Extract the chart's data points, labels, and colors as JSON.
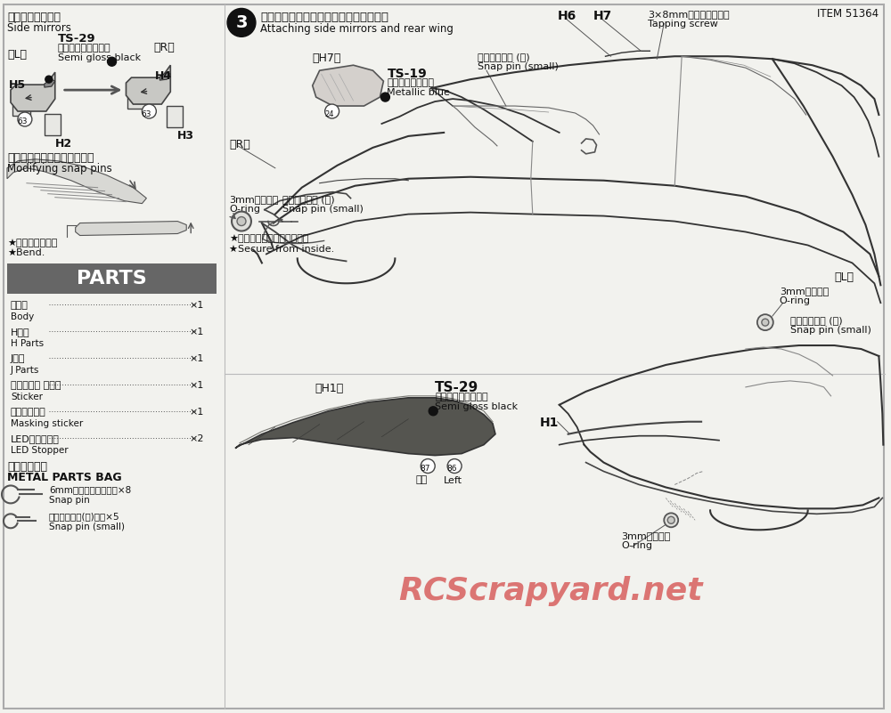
{
  "page_bg": "#f2f2ee",
  "title_item": "ITEM 51364",
  "watermark": "RCScrapyard.net",
  "watermark_color": "#cc2222",
  "section_side_mirror_jp": "《サイドミラー》",
  "section_side_mirror_en": "Side mirrors",
  "ts29_label": "TS-29",
  "ts29_jp": "セミグロスブラック",
  "ts29_en": "Semi gloss black",
  "step3_jp": "《サイドミラー、ウイングの取り付け》",
  "step3_en": "Attaching side mirrors and rear wing",
  "h7_label": "《H7》",
  "ts19_label": "TS-19",
  "ts19_jp": "メタリックブルー",
  "ts19_en": "Metallic blue",
  "tapping_screw_jp": "3×8mmタッピングビス",
  "tapping_screw_en": "Tapping screw",
  "snap_pin_small_jp": "スナップピン (小)",
  "snap_pin_small_en": "Snap pin (small)",
  "oring_jp": "3mmオリング",
  "oring_en": "O-ring",
  "secure_jp": "★ボディ内側で固定します。",
  "secure_en": "★Secure from inside.",
  "modifying_jp": "《スナップピンの折り曲げ》",
  "modifying_en": "Modifying snap pins",
  "bend_jp": "★折り曲げます。",
  "bend_en": "★Bend.",
  "parts_header": "PARTS",
  "parts_header_bg": "#666666",
  "parts_list": [
    [
      "ボディ",
      "Body",
      "×1"
    ],
    [
      "H部品",
      "H Parts",
      "×1"
    ],
    [
      "J部品",
      "J Parts",
      "×1"
    ],
    [
      "ステッカー ⓐ，ⓑ",
      "Sticker",
      "×1"
    ],
    [
      "マスクシール",
      "Masking sticker",
      "×1"
    ],
    [
      "LEDストッパー",
      "LED Stopper",
      "×2"
    ]
  ],
  "metal_parts_jp": "《金具袋詰》",
  "metal_parts_en": "METAL PARTS BAG",
  "snap6mm_jp": "6mmスナップビン・・×8",
  "snap6mm_en": "Snap pin",
  "snap_small_jp": "スナップビン(小)・・×5",
  "snap_small_en": "Snap pin (small)",
  "h1_label": "《H1》",
  "ts29b_label": "TS-29",
  "ts29b_jp": "セミグロスブラック",
  "ts29b_en": "Semi gloss black",
  "left_jp": "左側",
  "left_en": "Left"
}
